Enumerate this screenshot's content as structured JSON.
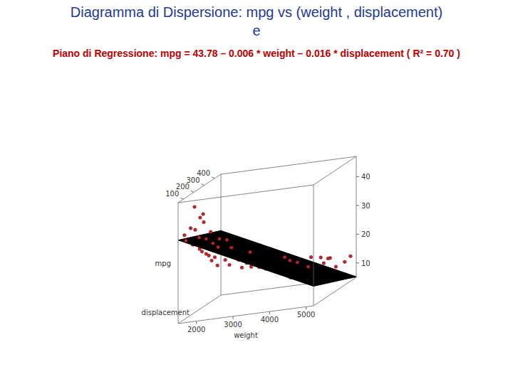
{
  "chart_data": {
    "type": "scatter3d",
    "title": [
      "Diagramma di Dispersione: mpg vs (weight , displacement)",
      "e"
    ],
    "subtitle": "Piano di Regressione: mpg = 43.78 – 0.006 * weight – 0.016 * displacement ( R² = 0.70 )",
    "x_label": "weight",
    "y_label": "displacement",
    "z_label": "mpg",
    "xlim": [
      1500,
      5200
    ],
    "xticks": [
      2000,
      3000,
      4000,
      5000
    ],
    "ylim": [
      50,
      460
    ],
    "yticks": [
      100,
      200,
      300,
      400
    ],
    "zlim": [
      5,
      47
    ],
    "zticks": [
      10,
      20,
      30,
      40
    ],
    "color": "#c0262d",
    "marker": "circle",
    "plane": {
      "intercept": 43.78,
      "coefficients": [
        -0.006,
        -0.016
      ],
      "color": "#000000"
    },
    "x": [
      1613,
      1650,
      1760,
      1800,
      1835,
      1850,
      1940,
      1950,
      1985,
      2019,
      2045,
      2100,
      2130,
      2160,
      2190,
      2220,
      2265,
      2300,
      2335,
      2370,
      2430,
      2500,
      2560,
      2600,
      2670,
      2720,
      2800,
      2870,
      2945,
      3000,
      3100,
      3150,
      3250,
      3300,
      3400,
      3430,
      3500,
      3600,
      3700,
      3800,
      3900,
      4000,
      4100,
      4200,
      4300,
      4400,
      4500,
      4600,
      4700,
      4900,
      5100,
      4250,
      3650,
      2950,
      2400,
      2050,
      3850,
      4450
    ],
    "y": [
      71,
      72,
      79,
      85,
      90,
      91,
      97,
      98,
      91,
      97,
      105,
      108,
      98,
      113,
      120,
      119,
      116,
      121,
      140,
      122,
      140,
      151,
      146,
      156,
      151,
      171,
      173,
      181,
      200,
      225,
      231,
      250,
      232,
      258,
      250,
      302,
      318,
      305,
      350,
      350,
      351,
      318,
      400,
      350,
      400,
      429,
      455,
      400,
      440,
      455,
      440,
      360,
      318,
      232,
      130,
      97,
      302,
      383
    ],
    "z": [
      35,
      33,
      37,
      31,
      44,
      36,
      33,
      29,
      40,
      28,
      38,
      32,
      27,
      26,
      34,
      24,
      30,
      25,
      28,
      22,
      26,
      23,
      30,
      21,
      27,
      24,
      22,
      19,
      20,
      18,
      21,
      17,
      20,
      16,
      19,
      15,
      17,
      14,
      16,
      13,
      15,
      14,
      12,
      13,
      11,
      12,
      13,
      14,
      10,
      11,
      13,
      16,
      18,
      23,
      31,
      41,
      11,
      15
    ]
  }
}
